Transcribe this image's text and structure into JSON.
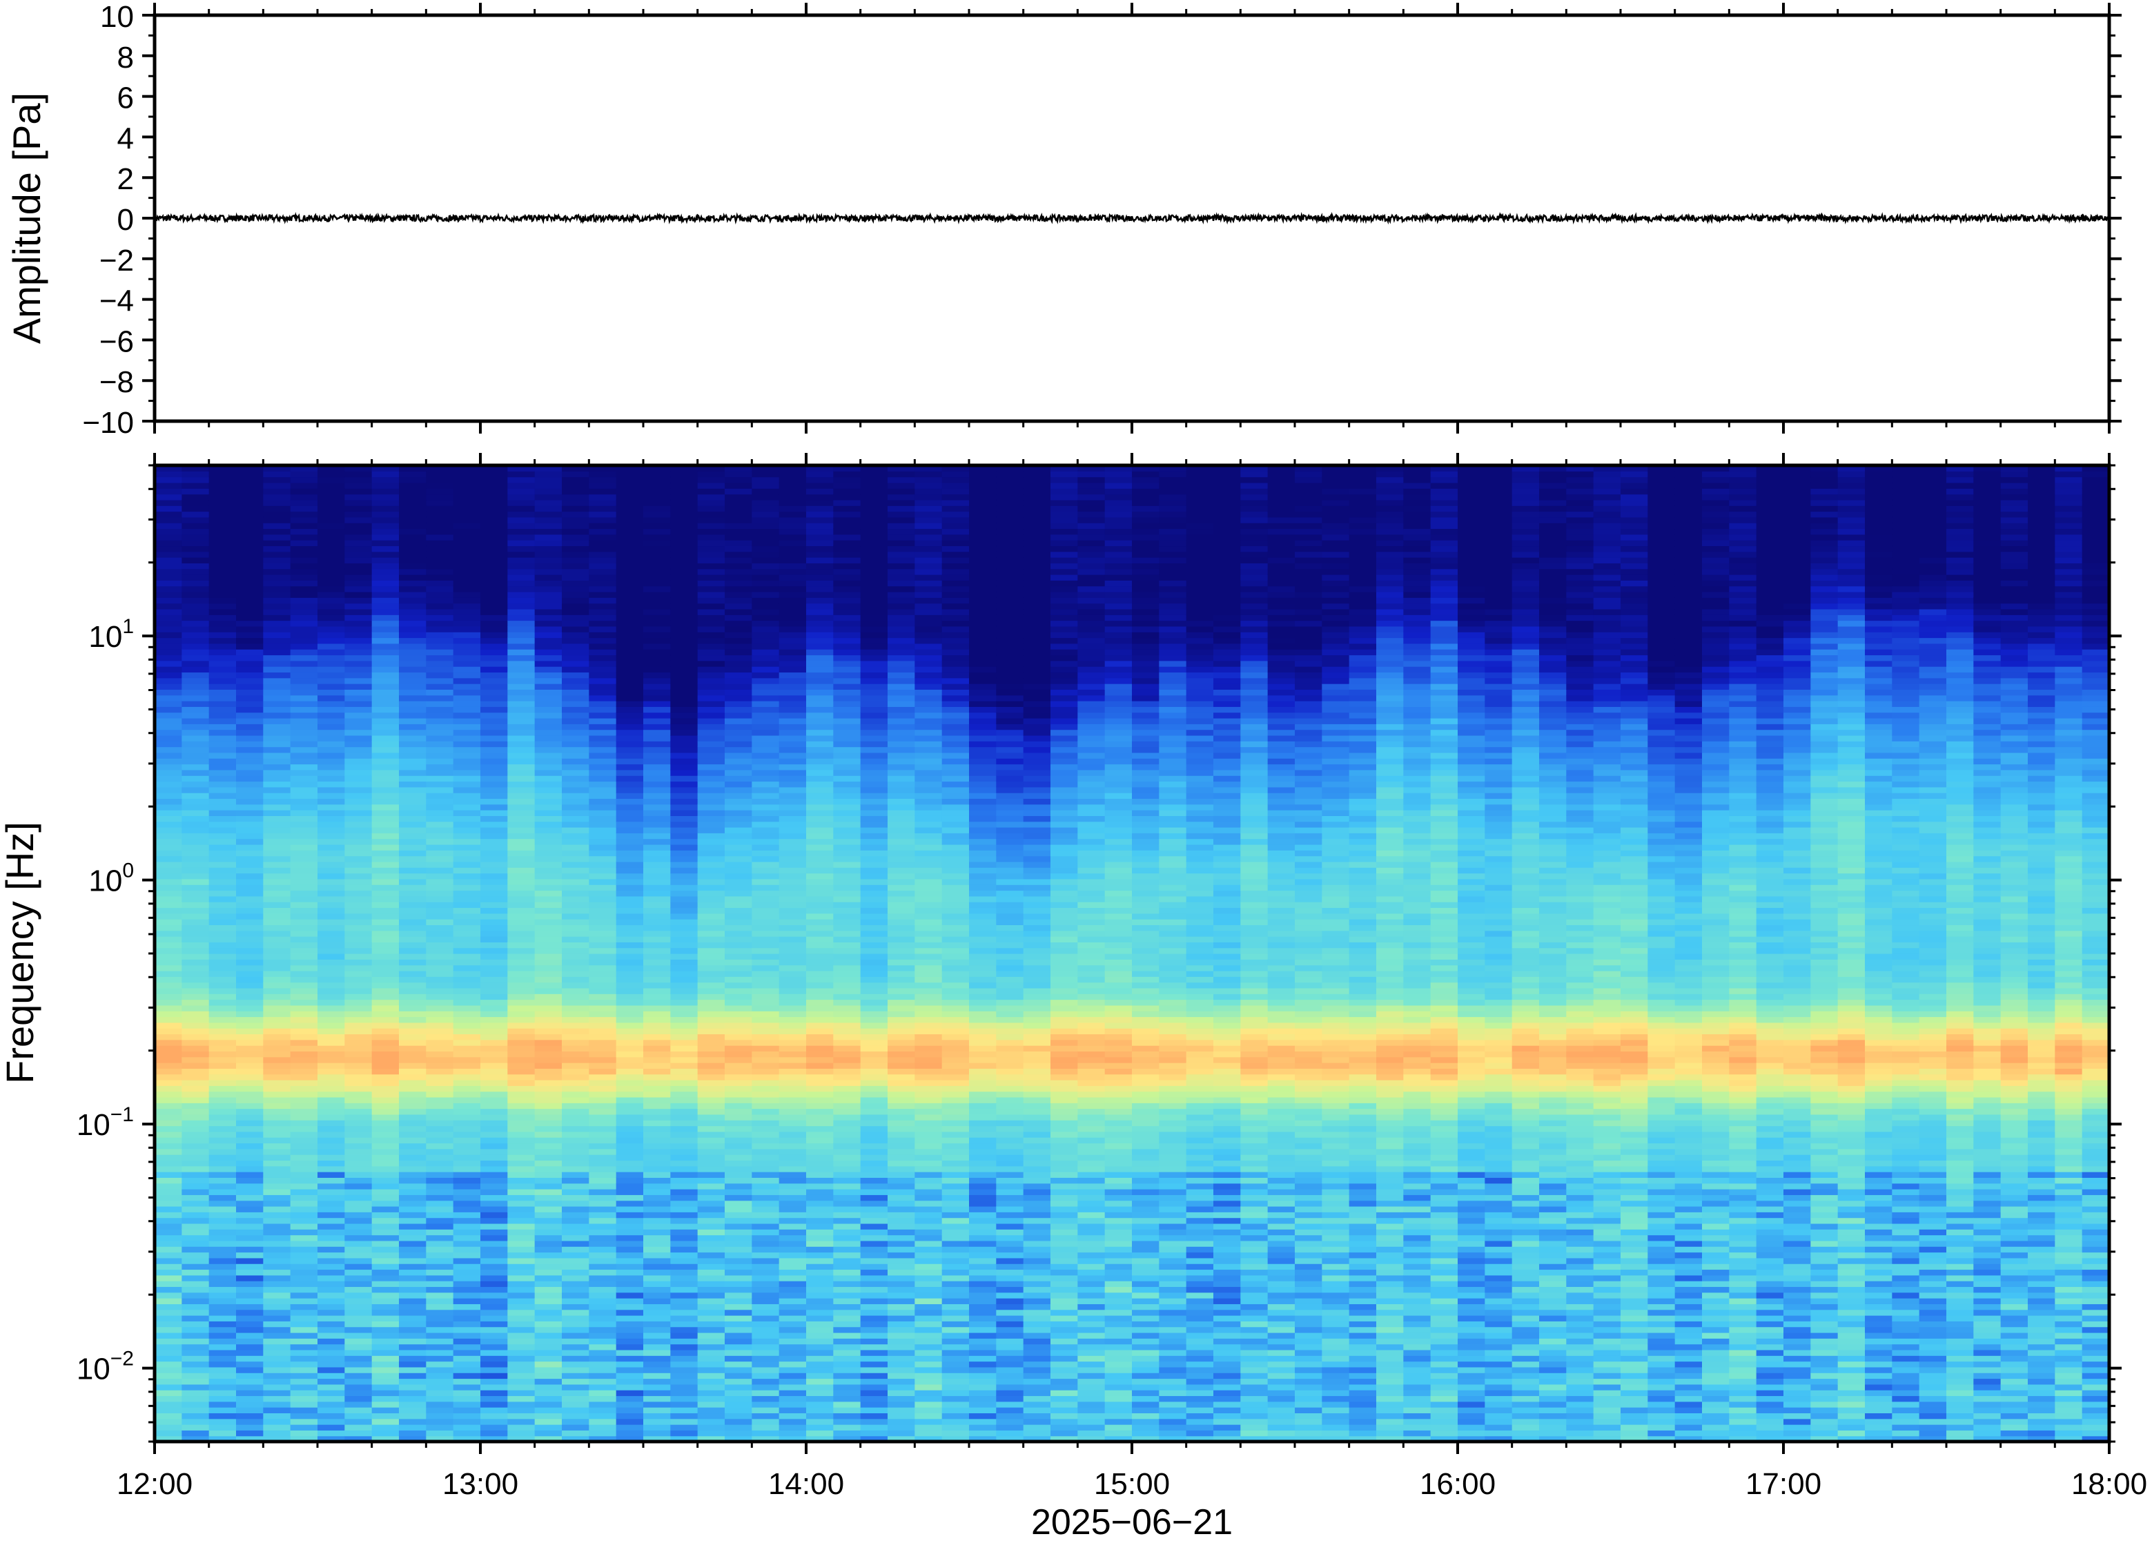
{
  "chart_data": [
    {
      "type": "line",
      "ylabel": "Amplitude [Pa]",
      "ylim": [
        -10,
        10
      ],
      "yticks": [
        "10",
        "8",
        "6",
        "4",
        "2",
        "0",
        "−2",
        "−4",
        "−6",
        "−8",
        "−10"
      ],
      "ytick_values": [
        10,
        8,
        6,
        4,
        2,
        0,
        -2,
        -4,
        -6,
        -8,
        -10
      ],
      "xlim": [
        "2025-06-21 12:00",
        "2025-06-21 18:00"
      ],
      "series": [
        {
          "values_note_free": true,
          "x_start": "2025-06-21 12:00",
          "x_end": "2025-06-21 18:00",
          "level": 0,
          "amplitude_max": 0.15,
          "color": "#000000"
        }
      ],
      "grid": false
    },
    {
      "type": "heatmap",
      "ylabel": "Frequency [Hz]",
      "xlabel": "2025−06−21",
      "y_scale": "log",
      "ylim": [
        0.005,
        50
      ],
      "yticks": [
        {
          "base": "10",
          "exp": "1",
          "value": 10
        },
        {
          "base": "10",
          "exp": "0",
          "value": 1
        },
        {
          "base": "10",
          "exp": "−1",
          "value": 0.1
        },
        {
          "base": "10",
          "exp": "−2",
          "value": 0.01
        }
      ],
      "xticks": [
        "12:00",
        "13:00",
        "14:00",
        "15:00",
        "16:00",
        "17:00",
        "18:00"
      ],
      "xtick_hours": [
        12,
        13,
        14,
        15,
        16,
        17,
        18
      ],
      "xlim_hours": [
        12,
        18
      ],
      "colormap": [
        "#0a0a78",
        "#1020c8",
        "#2a7ff0",
        "#46c8f5",
        "#78e6d2",
        "#c8f596",
        "#ffe682",
        "#ffaa64"
      ],
      "peak_band_hz": 0.19,
      "upper_cutoff_hz": [
        7,
        9,
        11,
        12,
        10,
        5,
        4,
        8,
        9,
        5,
        4,
        6,
        8,
        6,
        10,
        11,
        6,
        5,
        7,
        12,
        13,
        9,
        8
      ],
      "columns_per_hour": 12,
      "grid": false
    }
  ]
}
